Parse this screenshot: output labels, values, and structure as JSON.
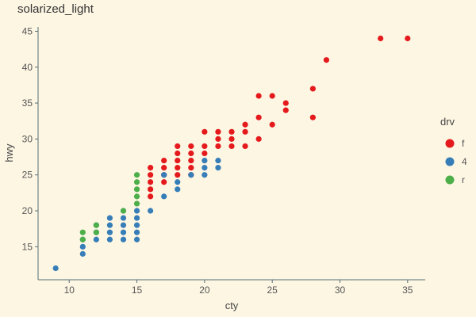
{
  "chart_data": {
    "type": "scatter",
    "title": "solarized_light",
    "xlabel": "cty",
    "ylabel": "hwy",
    "xlim": [
      7.7,
      36.3
    ],
    "ylim": [
      10.4,
      45.6
    ],
    "x_ticks": [
      10,
      15,
      20,
      25,
      30,
      35
    ],
    "y_ticks": [
      15,
      20,
      25,
      30,
      35,
      40,
      45
    ],
    "grid": false,
    "legend": {
      "title": "drv",
      "position": "right",
      "entries": [
        {
          "label": "f",
          "color": "#e41a1c"
        },
        {
          "label": "4",
          "color": "#377eb8"
        },
        {
          "label": "r",
          "color": "#4daf4a"
        }
      ]
    },
    "series": [
      {
        "name": "f",
        "color": "#e41a1c",
        "points": [
          [
            35,
            44
          ],
          [
            33,
            44
          ],
          [
            29,
            41
          ],
          [
            28,
            37
          ],
          [
            28,
            33
          ],
          [
            26,
            35
          ],
          [
            26,
            34
          ],
          [
            25,
            36
          ],
          [
            25,
            32
          ],
          [
            24,
            36
          ],
          [
            24,
            33
          ],
          [
            24,
            30
          ],
          [
            23,
            32
          ],
          [
            23,
            31
          ],
          [
            23,
            29
          ],
          [
            22,
            31
          ],
          [
            22,
            30
          ],
          [
            22,
            29
          ],
          [
            21,
            31
          ],
          [
            21,
            30
          ],
          [
            21,
            29
          ],
          [
            20,
            31
          ],
          [
            20,
            29
          ],
          [
            20,
            28
          ],
          [
            19,
            29
          ],
          [
            19,
            28
          ],
          [
            19,
            27
          ],
          [
            19,
            26
          ],
          [
            19,
            25
          ],
          [
            18,
            29
          ],
          [
            18,
            28
          ],
          [
            18,
            27
          ],
          [
            18,
            26
          ],
          [
            18,
            25
          ],
          [
            17,
            27
          ],
          [
            17,
            26
          ],
          [
            17,
            25
          ],
          [
            17,
            24
          ],
          [
            16,
            26
          ],
          [
            16,
            25
          ],
          [
            16,
            24
          ],
          [
            16,
            23
          ],
          [
            16,
            22
          ]
        ]
      },
      {
        "name": "4",
        "color": "#377eb8",
        "points": [
          [
            21,
            27
          ],
          [
            21,
            26
          ],
          [
            20,
            27
          ],
          [
            20,
            26
          ],
          [
            20,
            25
          ],
          [
            19,
            25
          ],
          [
            18,
            24
          ],
          [
            18,
            23
          ],
          [
            17,
            25
          ],
          [
            17,
            22
          ],
          [
            16,
            20
          ],
          [
            15,
            20
          ],
          [
            15,
            19
          ],
          [
            15,
            18
          ],
          [
            15,
            17
          ],
          [
            15,
            16
          ],
          [
            14,
            20
          ],
          [
            14,
            19
          ],
          [
            14,
            18
          ],
          [
            14,
            17
          ],
          [
            14,
            16
          ],
          [
            13,
            19
          ],
          [
            13,
            18
          ],
          [
            13,
            17
          ],
          [
            13,
            16
          ],
          [
            12,
            18
          ],
          [
            12,
            17
          ],
          [
            12,
            16
          ],
          [
            11,
            16
          ],
          [
            11,
            15
          ],
          [
            11,
            14
          ],
          [
            9,
            12
          ]
        ]
      },
      {
        "name": "r",
        "color": "#4daf4a",
        "points": [
          [
            15,
            25
          ],
          [
            15,
            24
          ],
          [
            15,
            23
          ],
          [
            15,
            22
          ],
          [
            15,
            21
          ],
          [
            14,
            20
          ],
          [
            12,
            18
          ],
          [
            12,
            17
          ],
          [
            11,
            17
          ],
          [
            11,
            16
          ]
        ]
      }
    ]
  }
}
